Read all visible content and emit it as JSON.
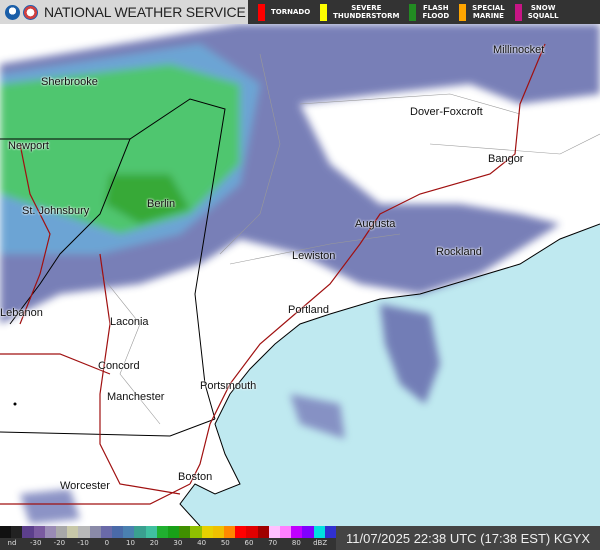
{
  "header": {
    "title": "NATIONAL WEATHER SERVICE",
    "warnings": [
      {
        "label": "TORNADO",
        "color": "#ff0000"
      },
      {
        "label": "SEVERE\nTHUNDERSTORM",
        "color": "#ffff00"
      },
      {
        "label": "FLASH\nFLOOD",
        "color": "#228b22"
      },
      {
        "label": "SPECIAL\nMARINE",
        "color": "#ffa500"
      },
      {
        "label": "SNOW\nSQUALL",
        "color": "#c71585"
      }
    ]
  },
  "cities": [
    {
      "name": "Sherbrooke"
    },
    {
      "name": "Millinocket"
    },
    {
      "name": "Dover-Foxcroft"
    },
    {
      "name": "Newport"
    },
    {
      "name": "Bangor"
    },
    {
      "name": "St. Johnsbury"
    },
    {
      "name": "Berlin"
    },
    {
      "name": "Augusta"
    },
    {
      "name": "Rockland"
    },
    {
      "name": "Lewiston"
    },
    {
      "name": "Lebanon"
    },
    {
      "name": "Laconia"
    },
    {
      "name": "Portland"
    },
    {
      "name": "Concord"
    },
    {
      "name": "Portsmouth"
    },
    {
      "name": "Manchester"
    },
    {
      "name": "Worcester"
    },
    {
      "name": "Boston"
    }
  ],
  "legend": {
    "ticks": [
      "nd",
      "-30",
      "-20",
      "-10",
      "0",
      "10",
      "20",
      "30",
      "40",
      "50",
      "60",
      "70",
      "80",
      "dBZ"
    ],
    "colors": [
      "#111111",
      "#222222",
      "#5c3f8c",
      "#7a5aa0",
      "#9a8bb5",
      "#a8a8a8",
      "#c8c8a8",
      "#b8b8b8",
      "#8a8aa8",
      "#6a6aa8",
      "#4a6aa8",
      "#4a80b0",
      "#3aa090",
      "#40c0a0",
      "#20b030",
      "#18a018",
      "#409000",
      "#90c000",
      "#e8d000",
      "#f0c000",
      "#ff8800",
      "#ff0000",
      "#e00000",
      "#a00000",
      "#ffc0ff",
      "#ff80ff",
      "#c000ff",
      "#8000ff",
      "#00e0e0",
      "#3030d0"
    ]
  },
  "status": {
    "timestamp": "11/07/2025 22:38 UTC (17:38 EST) KGYX"
  },
  "colors": {
    "ocean": "#bfe9f0",
    "land": "#ffffff",
    "roads": "#a01010"
  }
}
